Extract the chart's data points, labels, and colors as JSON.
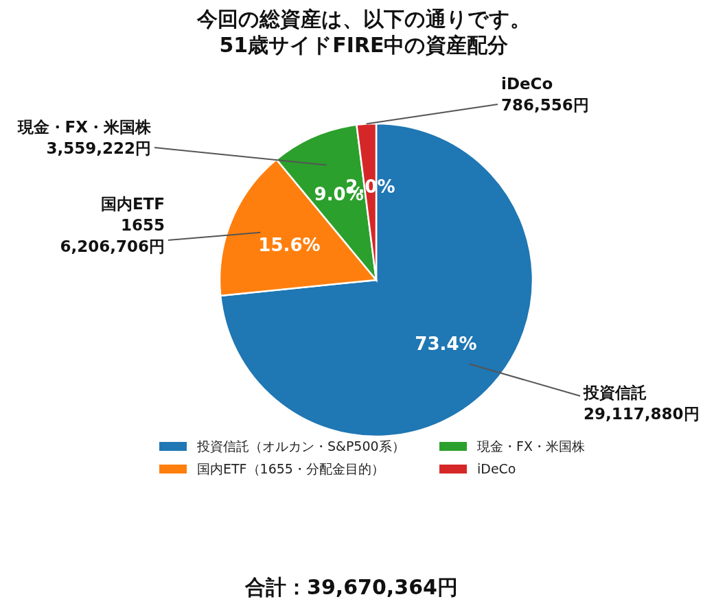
{
  "chart_data": {
    "type": "pie",
    "title": "今回の総資産は、以下の通りです。\n51歳サイドFIRE中の資産配分",
    "categories": [
      "投資信託（オルカン・S&P500系）",
      "国内ETF（1655・分配金目的）",
      "現金・FX・米国株",
      "iDeCo"
    ],
    "values": [
      73.4,
      15.6,
      9.0,
      2.0
    ],
    "colors": [
      "#1f77b4",
      "#ff7f0e",
      "#2ca02c",
      "#d62728"
    ],
    "value_labels": [
      "73.4%",
      "15.6%",
      "9.0%",
      "2.0%"
    ],
    "legend": "bottom",
    "annotations": [
      "投資信託\n29,117,880円",
      "国内ETF\n1655\n6,206,706円",
      "現金・FX・米国株\n3,559,222円",
      "iDeCo\n786,556円",
      "合計：39,670,364円"
    ]
  }
}
